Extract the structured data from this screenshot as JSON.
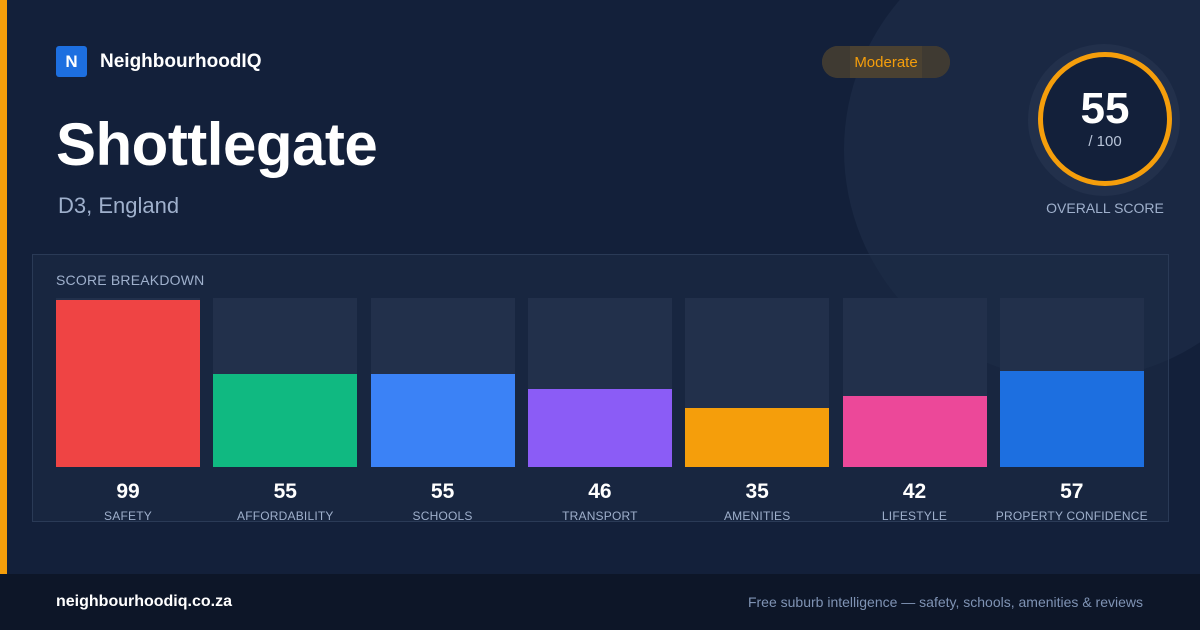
{
  "brand": {
    "logo_letter": "N",
    "name": "NeighbourhoodIQ"
  },
  "badge": {
    "label": "Moderate",
    "color": "#f59e0b"
  },
  "suburb": {
    "name": "Shottlegate",
    "region": "D3, England"
  },
  "overall": {
    "score": "55",
    "max": "/ 100",
    "label": "OVERALL SCORE"
  },
  "breakdown": {
    "title": "SCORE BREAKDOWN",
    "max_score": 100,
    "items": [
      {
        "label": "SAFETY",
        "value": "99",
        "score": 99,
        "color": "#ef4444"
      },
      {
        "label": "AFFORDABILITY",
        "value": "55",
        "score": 55,
        "color": "#10b981"
      },
      {
        "label": "SCHOOLS",
        "value": "55",
        "score": 55,
        "color": "#3b82f6"
      },
      {
        "label": "TRANSPORT",
        "value": "46",
        "score": 46,
        "color": "#8b5cf6"
      },
      {
        "label": "AMENITIES",
        "value": "35",
        "score": 35,
        "color": "#f59e0b"
      },
      {
        "label": "LIFESTYLE",
        "value": "42",
        "score": 42,
        "color": "#ec4899"
      },
      {
        "label": "PROPERTY CONFIDENCE",
        "value": "57",
        "score": 57,
        "color": "#1d6fe0"
      }
    ]
  },
  "footer": {
    "domain": "neighbourhoodiq.co.za",
    "tagline": "Free suburb intelligence — safety, schools, amenities & reviews"
  }
}
